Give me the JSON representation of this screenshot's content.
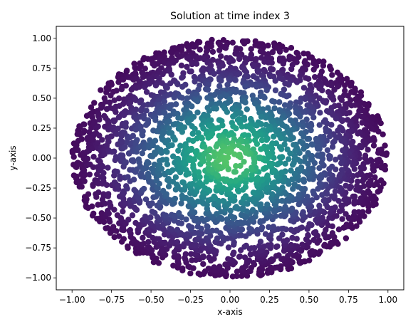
{
  "chart_data": {
    "type": "scatter",
    "title": "Solution at time index 3",
    "xlabel": "x-axis",
    "ylabel": "y-axis",
    "xlim": [
      -1.1,
      1.1
    ],
    "ylim": [
      -1.1,
      1.1
    ],
    "xticks": [
      -1.0,
      -0.75,
      -0.5,
      -0.25,
      0.0,
      0.25,
      0.5,
      0.75,
      1.0
    ],
    "yticks": [
      -1.0,
      -0.75,
      -0.5,
      -0.25,
      0.0,
      0.25,
      0.5,
      0.75,
      1.0
    ],
    "xtick_labels": [
      "−1.00",
      "−0.75",
      "−0.50",
      "−0.25",
      "0.00",
      "0.25",
      "0.50",
      "0.75",
      "1.00"
    ],
    "ytick_labels": [
      "−1.00",
      "−0.75",
      "−0.50",
      "−0.25",
      "0.00",
      "0.25",
      "0.50",
      "0.75",
      "1.00"
    ],
    "grid": false,
    "colormap": "viridis",
    "domain": "unit disk",
    "value_range": [
      0,
      0.85
    ],
    "point_count": 3000
  }
}
